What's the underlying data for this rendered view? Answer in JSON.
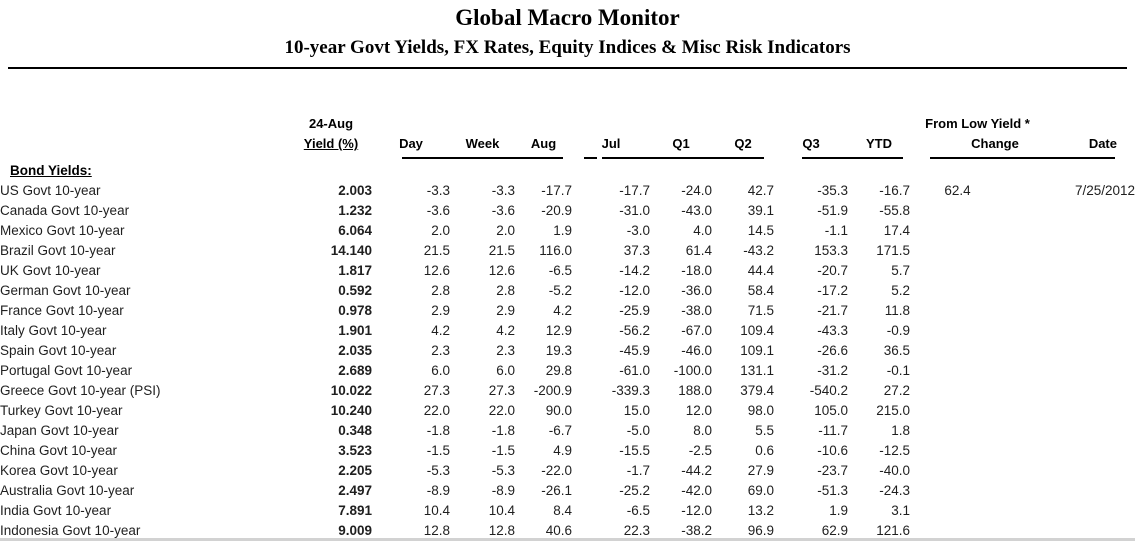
{
  "header": {
    "title": "Global Macro Monitor",
    "subtitle": "10-year Govt Yields, FX Rates, Equity Indices & Misc Risk Indicators"
  },
  "table": {
    "section_label": "Bond Yields:",
    "col_headers": {
      "date_label": "24-Aug",
      "yield_label": "Yield (%)",
      "day": "Day",
      "week": "Week",
      "aug": "Aug",
      "jul": "Jul",
      "q1": "Q1",
      "q2": "Q2",
      "q3": "Q3",
      "ytd": "YTD",
      "from_low_group": "From Low Yield *",
      "change": "Change",
      "date": "Date"
    },
    "rows": [
      {
        "label": "US Govt 10-year",
        "yield": "2.003",
        "day": "-3.3",
        "week": "-3.3",
        "aug": "-17.7",
        "jul": "-17.7",
        "q1": "-24.0",
        "q2": "42.7",
        "q3": "-35.3",
        "ytd": "-16.7",
        "change": "62.4",
        "date": "7/25/2012"
      },
      {
        "label": "Canada Govt 10-year",
        "yield": "1.232",
        "day": "-3.6",
        "week": "-3.6",
        "aug": "-20.9",
        "jul": "-31.0",
        "q1": "-43.0",
        "q2": "39.1",
        "q3": "-51.9",
        "ytd": "-55.8",
        "change": "",
        "date": ""
      },
      {
        "label": "Mexico Govt 10-year",
        "yield": "6.064",
        "day": "2.0",
        "week": "2.0",
        "aug": "1.9",
        "jul": "-3.0",
        "q1": "4.0",
        "q2": "14.5",
        "q3": "-1.1",
        "ytd": "17.4",
        "change": "",
        "date": ""
      },
      {
        "label": "Brazil Govt 10-year",
        "yield": "14.140",
        "day": "21.5",
        "week": "21.5",
        "aug": "116.0",
        "jul": "37.3",
        "q1": "61.4",
        "q2": "-43.2",
        "q3": "153.3",
        "ytd": "171.5",
        "change": "",
        "date": ""
      },
      {
        "label": "UK Govt 10-year",
        "yield": "1.817",
        "day": "12.6",
        "week": "12.6",
        "aug": "-6.5",
        "jul": "-14.2",
        "q1": "-18.0",
        "q2": "44.4",
        "q3": "-20.7",
        "ytd": "5.7",
        "change": "",
        "date": ""
      },
      {
        "label": "German Govt 10-year",
        "yield": "0.592",
        "day": "2.8",
        "week": "2.8",
        "aug": "-5.2",
        "jul": "-12.0",
        "q1": "-36.0",
        "q2": "58.4",
        "q3": "-17.2",
        "ytd": "5.2",
        "change": "",
        "date": ""
      },
      {
        "label": "France Govt 10-year",
        "yield": "0.978",
        "day": "2.9",
        "week": "2.9",
        "aug": "4.2",
        "jul": "-25.9",
        "q1": "-38.0",
        "q2": "71.5",
        "q3": "-21.7",
        "ytd": "11.8",
        "change": "",
        "date": ""
      },
      {
        "label": "Italy Govt 10-year",
        "yield": "1.901",
        "day": "4.2",
        "week": "4.2",
        "aug": "12.9",
        "jul": "-56.2",
        "q1": "-67.0",
        "q2": "109.4",
        "q3": "-43.3",
        "ytd": "-0.9",
        "change": "",
        "date": ""
      },
      {
        "label": "Spain Govt 10-year",
        "yield": "2.035",
        "day": "2.3",
        "week": "2.3",
        "aug": "19.3",
        "jul": "-45.9",
        "q1": "-46.0",
        "q2": "109.1",
        "q3": "-26.6",
        "ytd": "36.5",
        "change": "",
        "date": ""
      },
      {
        "label": "Portugal Govt 10-year",
        "yield": "2.689",
        "day": "6.0",
        "week": "6.0",
        "aug": "29.8",
        "jul": "-61.0",
        "q1": "-100.0",
        "q2": "131.1",
        "q3": "-31.2",
        "ytd": "-0.1",
        "change": "",
        "date": ""
      },
      {
        "label": "Greece Govt 10-year (PSI)",
        "yield": "10.022",
        "day": "27.3",
        "week": "27.3",
        "aug": "-200.9",
        "jul": "-339.3",
        "q1": "188.0",
        "q2": "379.4",
        "q3": "-540.2",
        "ytd": "27.2",
        "change": "",
        "date": ""
      },
      {
        "label": "Turkey Govt 10-year",
        "yield": "10.240",
        "day": "22.0",
        "week": "22.0",
        "aug": "90.0",
        "jul": "15.0",
        "q1": "12.0",
        "q2": "98.0",
        "q3": "105.0",
        "ytd": "215.0",
        "change": "",
        "date": ""
      },
      {
        "label": "Japan Govt 10-year",
        "yield": "0.348",
        "day": "-1.8",
        "week": "-1.8",
        "aug": "-6.7",
        "jul": "-5.0",
        "q1": "8.0",
        "q2": "5.5",
        "q3": "-11.7",
        "ytd": "1.8",
        "change": "",
        "date": ""
      },
      {
        "label": "China Govt 10-year",
        "yield": "3.523",
        "day": "-1.5",
        "week": "-1.5",
        "aug": "4.9",
        "jul": "-15.5",
        "q1": "-2.5",
        "q2": "0.6",
        "q3": "-10.6",
        "ytd": "-12.5",
        "change": "",
        "date": ""
      },
      {
        "label": "Korea Govt 10-year",
        "yield": "2.205",
        "day": "-5.3",
        "week": "-5.3",
        "aug": "-22.0",
        "jul": "-1.7",
        "q1": "-44.2",
        "q2": "27.9",
        "q3": "-23.7",
        "ytd": "-40.0",
        "change": "",
        "date": ""
      },
      {
        "label": "Australia Govt 10-year",
        "yield": "2.497",
        "day": "-8.9",
        "week": "-8.9",
        "aug": "-26.1",
        "jul": "-25.2",
        "q1": "-42.0",
        "q2": "69.0",
        "q3": "-51.3",
        "ytd": "-24.3",
        "change": "",
        "date": ""
      },
      {
        "label": "India Govt 10-year",
        "yield": "7.891",
        "day": "10.4",
        "week": "10.4",
        "aug": "8.4",
        "jul": "-6.5",
        "q1": "-12.0",
        "q2": "13.2",
        "q3": "1.9",
        "ytd": "3.1",
        "change": "",
        "date": ""
      },
      {
        "label": "Indonesia Govt 10-year",
        "yield": "9.009",
        "day": "12.8",
        "week": "12.8",
        "aug": "40.6",
        "jul": "22.3",
        "q1": "-38.2",
        "q2": "96.9",
        "q3": "62.9",
        "ytd": "121.6",
        "change": "",
        "date": ""
      }
    ]
  }
}
